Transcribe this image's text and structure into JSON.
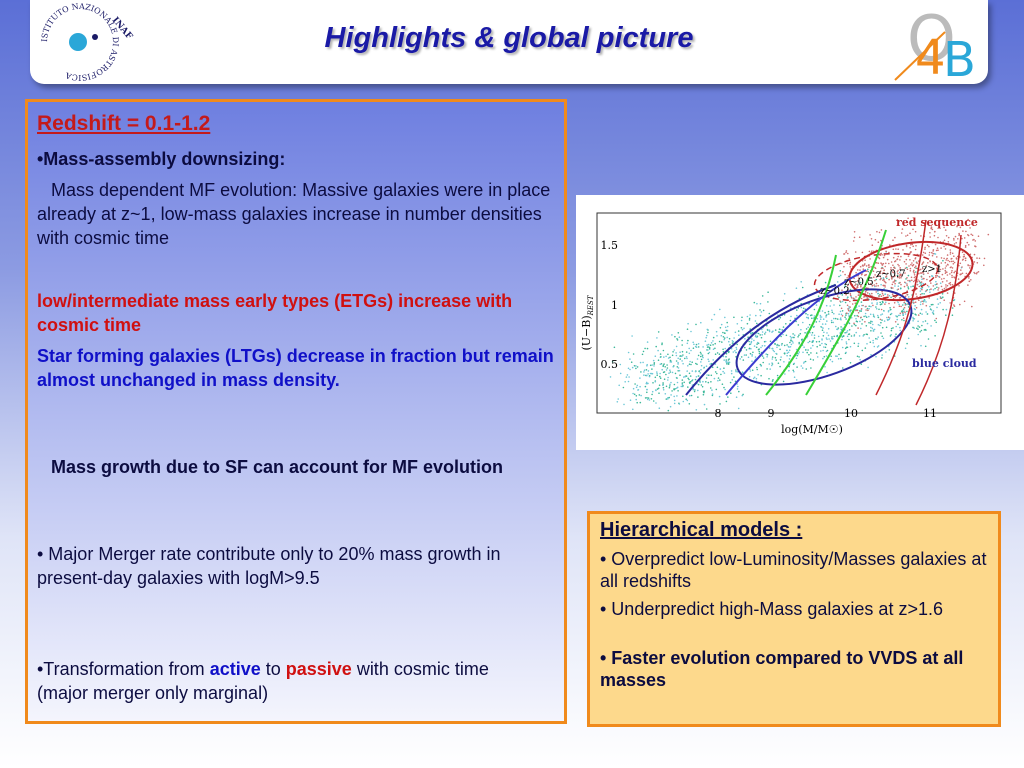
{
  "header": {
    "title": "Highlights & global picture",
    "logo_left": {
      "ring": "ISTITUTO NAZIONALE DI ASTROFISICA",
      "mark": "INAF"
    },
    "logo_right": [
      "O",
      "4",
      "B"
    ]
  },
  "left_panel": {
    "heading": "Redshift = 0.1-1.2",
    "subheading": "•Mass-assembly downsizing:",
    "paragraph": "Mass dependent MF evolution: Massive galaxies were in place already at z~1, low-mass galaxies increase in number densities with cosmic time",
    "red_point": "low/intermediate mass early types (ETGs) increase with cosmic time",
    "blue_point": "Star forming galaxies (LTGs) decrease in fraction but remain almost unchanged  in mass density.",
    "sf_point": "Mass growth due to SF can account for MF evolution",
    "merger_point": "• Major Merger rate contribute only to 20% mass growth in present-day galaxies with logM>9.5",
    "transformation": [
      "•Transformation from ",
      "active",
      " to ",
      "passive",
      " with cosmic time (major merger only marginal)"
    ]
  },
  "figure": {
    "y_label": "(U−B)",
    "y_label_sub": "REST",
    "x_label": "log(M/M☉)",
    "yticks": [
      "1.5",
      "1",
      "0.5"
    ],
    "xticks": [
      "8",
      "9",
      "10",
      "11"
    ],
    "annotations": [
      "red sequence",
      "blue cloud",
      "z>1",
      "z~0.7",
      "z~0.5",
      "z~0.2"
    ]
  },
  "right_panel": {
    "heading": "Hierarchical models :",
    "items": [
      "• Overpredict low-Luminosity/Masses galaxies at all redshifts",
      "• Underpredict high-Mass galaxies at z>1.6",
      "• Faster evolution compared to VVDS at all masses"
    ]
  }
}
